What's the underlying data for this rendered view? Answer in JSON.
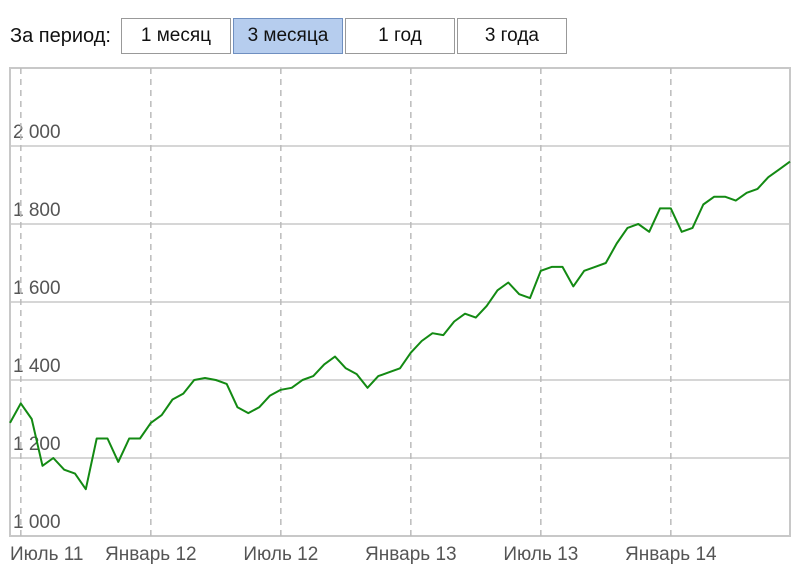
{
  "ui": {
    "period_label": "За период:",
    "buttons": [
      "1 месяц",
      "3 месяца",
      "1 год",
      "3 года"
    ],
    "selected": 1
  },
  "chart_data": {
    "type": "line",
    "categories": [
      null,
      "Июль 11",
      null,
      null,
      null,
      null,
      null,
      null,
      null,
      null,
      null,
      null,
      null,
      "Январь 12",
      null,
      null,
      null,
      null,
      null,
      null,
      null,
      null,
      null,
      null,
      null,
      "Июль 12",
      null,
      null,
      null,
      null,
      null,
      null,
      null,
      null,
      null,
      null,
      null,
      "Январь 13",
      null,
      null,
      null,
      null,
      null,
      null,
      null,
      null,
      null,
      null,
      null,
      "Июль 13",
      null,
      null,
      null,
      null,
      null,
      null,
      null,
      null,
      null,
      null,
      null,
      "Январь 14",
      null,
      null,
      null,
      null,
      null,
      null,
      null,
      null,
      null,
      null,
      null
    ],
    "series": [
      {
        "color": "#138a13",
        "values": [
          1290,
          1340,
          1300,
          1180,
          1200,
          1170,
          1160,
          1120,
          1250,
          1250,
          1190,
          1250,
          1250,
          1290,
          1310,
          1350,
          1365,
          1400,
          1405,
          1400,
          1390,
          1330,
          1315,
          1330,
          1360,
          1375,
          1380,
          1400,
          1410,
          1440,
          1460,
          1430,
          1415,
          1380,
          1410,
          1420,
          1430,
          1470,
          1500,
          1520,
          1515,
          1550,
          1570,
          1560,
          1590,
          1630,
          1650,
          1620,
          1610,
          1680,
          1690,
          1690,
          1640,
          1680,
          1690,
          1700,
          1750,
          1790,
          1800,
          1780,
          1840,
          1840,
          1780,
          1790,
          1850,
          1870,
          1870,
          1860,
          1880,
          1890,
          1920,
          1940,
          1960
        ]
      }
    ],
    "ylim": [
      1000,
      2200
    ],
    "yticks": [
      {
        "value": 1000,
        "label": "1 000"
      },
      {
        "value": 1200,
        "label": "1 200"
      },
      {
        "value": 1400,
        "label": "1 400"
      },
      {
        "value": 1600,
        "label": "1 600"
      },
      {
        "value": 1800,
        "label": "1 800"
      },
      {
        "value": 2000,
        "label": "2 000"
      }
    ],
    "grid": true
  }
}
